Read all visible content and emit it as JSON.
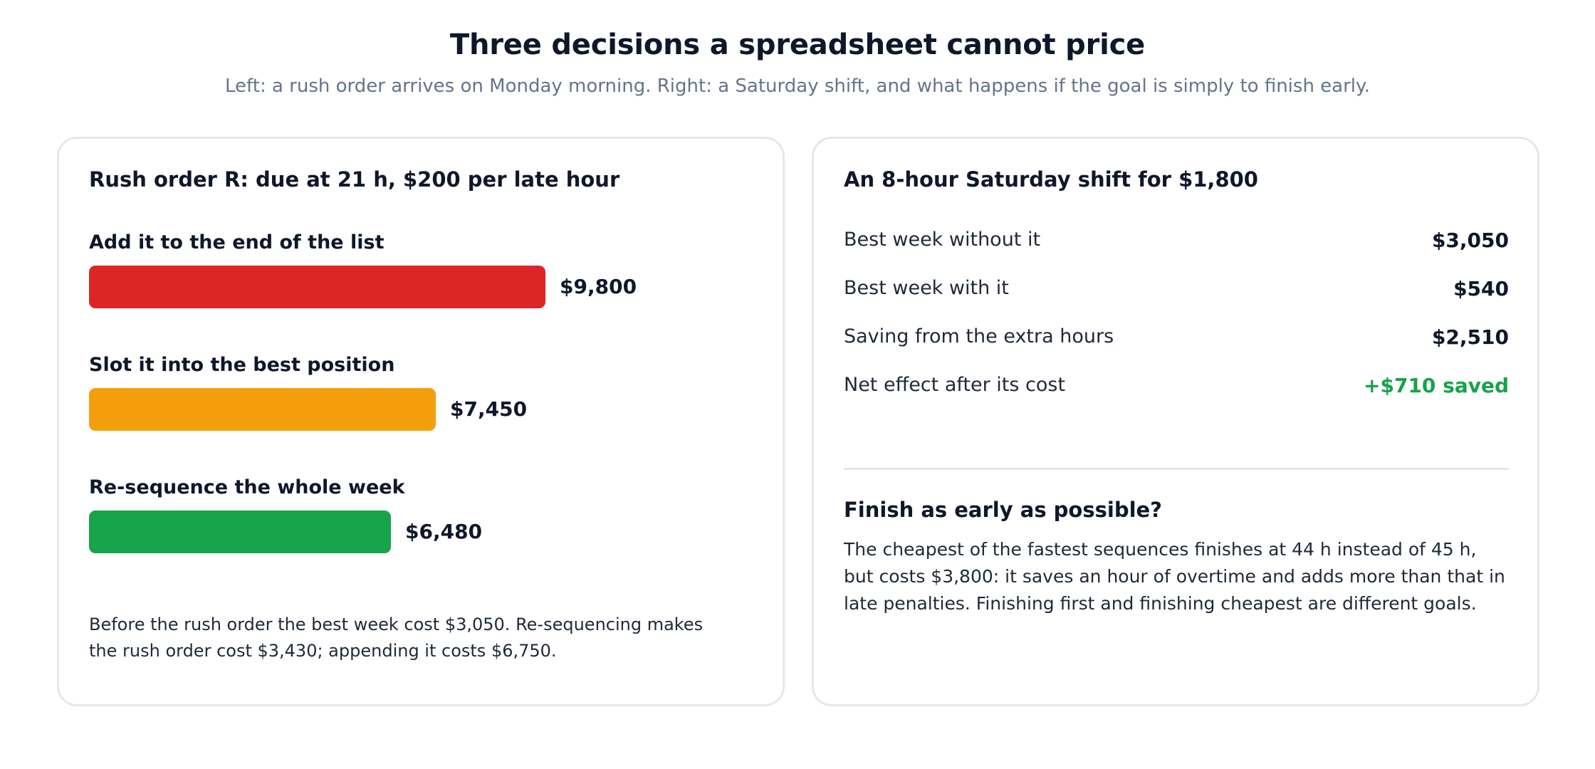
{
  "header": {
    "title": "Three decisions a spreadsheet cannot price",
    "subtitle": "Left: a rush order arrives on Monday morning. Right: a Saturday shift, and what happens if the goal is simply to finish early."
  },
  "chart_data": {
    "type": "bar",
    "orientation": "horizontal",
    "title": "Rush order R: due at 21 h, $200 per late hour",
    "categories": [
      "Add it to the end of the list",
      "Slot it into the best position",
      "Re-sequence the whole week"
    ],
    "values": [
      9800,
      7450,
      6480
    ],
    "value_labels": [
      "$9,800",
      "$7,450",
      "$6,480"
    ],
    "colors": [
      "#dc2626",
      "#f59e0b",
      "#16a34a"
    ],
    "xlim": [
      0,
      13000
    ],
    "grid": false,
    "legend": "none"
  },
  "left_card": {
    "footnote": "Before the rush order the best week cost $3,050. Re-sequencing makes the rush order cost $3,430; appending it costs $6,750."
  },
  "right_card": {
    "title": "An 8-hour Saturday shift for $1,800",
    "rows": [
      {
        "label": "Best week without it",
        "value": "$3,050"
      },
      {
        "label": "Best week with it",
        "value": "$540"
      },
      {
        "label": "Saving from the extra hours",
        "value": "$2,510"
      },
      {
        "label": "Net effect after its cost",
        "value": "+$710 saved"
      }
    ],
    "positive_color": "#16a34a",
    "section_title": "Finish as early as possible?",
    "section_body": "The cheapest of the fastest sequences finishes at 44 h instead of 45 h, but costs $3,800: it saves an hour of overtime and adds more than that in late penalties. Finishing first and finishing cheapest are different goals."
  }
}
